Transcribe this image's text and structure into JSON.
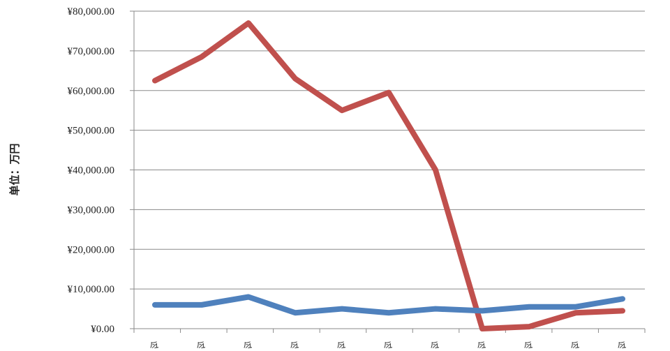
{
  "chart_data": {
    "type": "line",
    "title": "",
    "xlabel": "",
    "ylabel": "单位：万円",
    "ylim": [
      0,
      80000
    ],
    "y_ticks": [
      "¥0.00",
      "¥10,000.00",
      "¥20,000.00",
      "¥30,000.00",
      "¥40,000.00",
      "¥50,000.00",
      "¥60,000.00",
      "¥70,000.00",
      "¥80,000.00"
    ],
    "categories": [
      "令",
      "令",
      "令",
      "令",
      "令",
      "令",
      "令",
      "令",
      "令",
      "令",
      "令"
    ],
    "grid": true,
    "legend": "none",
    "series": [
      {
        "color": "#c0504d",
        "values": [
          62500,
          68500,
          77000,
          63000,
          55000,
          59500,
          40000,
          0,
          500,
          4000,
          4500
        ]
      },
      {
        "color": "#4f81bd",
        "values": [
          6000,
          6000,
          8000,
          4000,
          5000,
          4000,
          5000,
          4500,
          5500,
          5500,
          7500
        ]
      }
    ]
  }
}
